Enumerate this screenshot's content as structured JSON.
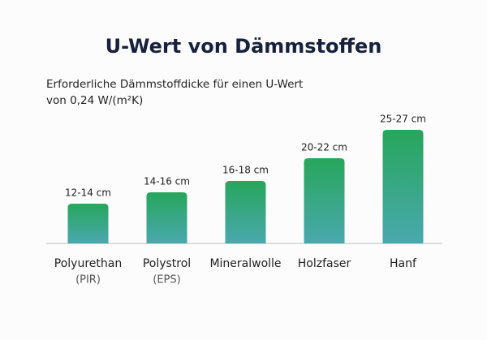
{
  "chart_data": {
    "type": "bar",
    "title": "U-Wert von Dämmstoffen",
    "subtitle": [
      "Erforderliche Dämmstoffdicke für einen U-Wert",
      "von 0,24 W/(m²K)"
    ],
    "categories": [
      [
        "Polyurethan",
        "(PIR)"
      ],
      [
        "Polystrol",
        "(EPS)"
      ],
      [
        "Mineralwolle"
      ],
      [
        "Holzfaser"
      ],
      [
        "Hanf"
      ]
    ],
    "values": [
      13,
      15,
      17,
      21,
      26
    ],
    "value_labels": [
      "12-14 cm",
      "14-16 cm",
      "16-18 cm",
      "20-22 cm",
      "25-27 cm"
    ],
    "color": [
      "#27a65c",
      "#4aa8ae"
    ],
    "ylim": [
      6,
      26
    ]
  }
}
